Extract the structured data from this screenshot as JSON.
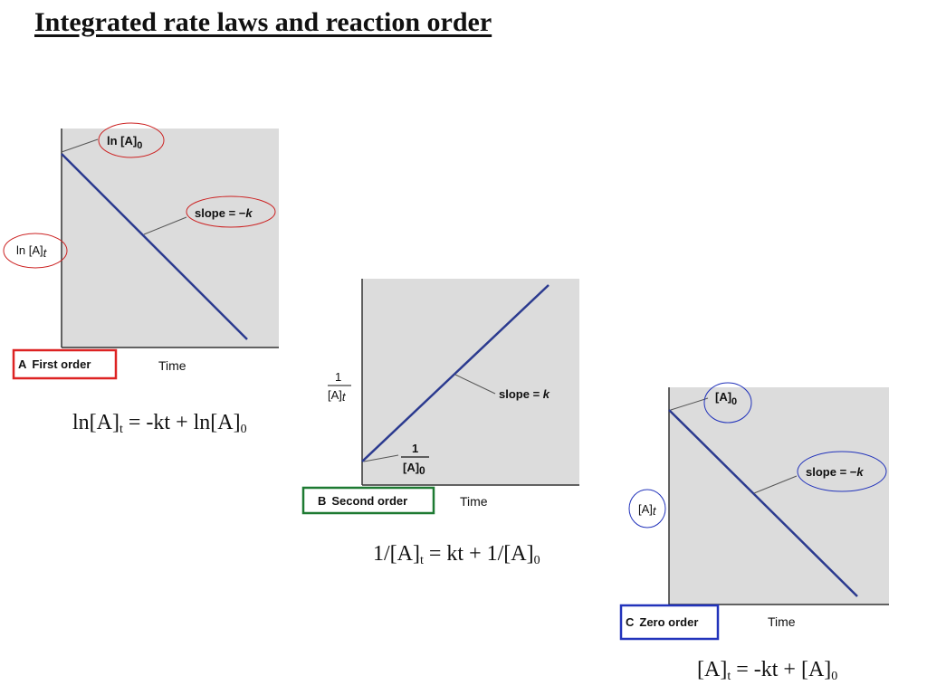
{
  "title": "Integrated rate laws and reaction order",
  "axis_time_label": "Time",
  "panels": [
    {
      "id": "A",
      "letter": "A",
      "name": "First order",
      "frame_color": "#dd2222",
      "y_label": "ln [A]",
      "y_label_sub": "t",
      "intercept_label": "ln [A]",
      "intercept_label_sub": "0",
      "slope_label": "slope = −",
      "slope_label_k": "k",
      "equation": {
        "lhs": "ln[A]",
        "lhs_sub": "t",
        "rhs": " = -kt + ln[A]",
        "rhs_sub": "0"
      }
    },
    {
      "id": "B",
      "letter": "B",
      "name": "Second order",
      "frame_color": "#1e7a32",
      "y_label_num": "1",
      "y_label_den": "[A]",
      "y_label_den_sub": "t",
      "intercept_num": "1",
      "intercept_den": "[A]",
      "intercept_den_sub": "0",
      "slope_label": "slope = ",
      "slope_label_k": "k",
      "equation": {
        "lhs": "1/[A]",
        "lhs_sub": "t",
        "rhs": " = kt + 1/[A]",
        "rhs_sub": "0"
      }
    },
    {
      "id": "C",
      "letter": "C",
      "name": "Zero order",
      "frame_color": "#2233bb",
      "y_label": "[A]",
      "y_label_sub": "t",
      "intercept_label": "[A]",
      "intercept_label_sub": "0",
      "slope_label": "slope = −",
      "slope_label_k": "k",
      "equation": {
        "lhs": "[A]",
        "lhs_sub": "t",
        "rhs": " = -kt + [A]",
        "rhs_sub": "0"
      }
    }
  ],
  "colors": {
    "plot_background": "#dcdcdc",
    "line": "#2b3a8f",
    "axis": "#333333"
  }
}
